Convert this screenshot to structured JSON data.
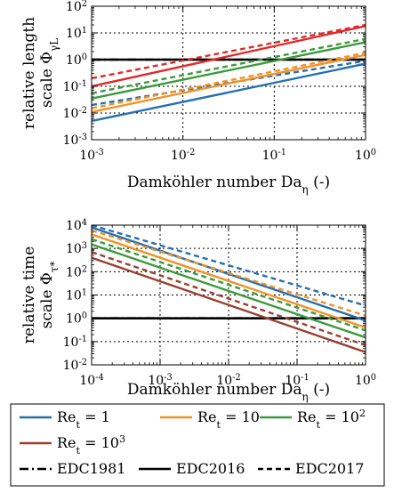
{
  "colors": {
    "re1": "#2470b0",
    "re10": "#f0922a",
    "re100": "#3c9a3c",
    "re1000": "#e02a2a",
    "re1000_panel2": "#9a4030",
    "grid": "#000000"
  },
  "legend": {
    "entries": [
      {
        "label": "Re_t = 1",
        "color_key": "re1",
        "style": "solid"
      },
      {
        "label": "Re_t = 10",
        "color_key": "re10",
        "style": "solid"
      },
      {
        "label": "Re_t = 10^2",
        "color_key": "re100",
        "style": "solid"
      },
      {
        "label": "Re_t = 10^3",
        "color_key": "re1000_panel2",
        "style": "solid"
      },
      {
        "label": "EDC1981",
        "color_key": "grid",
        "style": "dashdot"
      },
      {
        "label": "EDC2016",
        "color_key": "grid",
        "style": "solid"
      },
      {
        "label": "EDC2017",
        "color_key": "grid",
        "style": "dashed"
      }
    ]
  },
  "chart_data": [
    {
      "type": "line",
      "xlabel": "Damköhler number Da_η (-)",
      "ylabel_line1": "relative length",
      "ylabel_line2": "scale Φ_{γL}",
      "x_scale": "log",
      "y_scale": "log",
      "xlim": [
        0.001,
        1
      ],
      "ylim": [
        0.001,
        100
      ],
      "x_ticks": [
        "10^-3",
        "10^-2",
        "10^-1",
        "10^0"
      ],
      "y_ticks": [
        "10^-3",
        "10^-2",
        "10^-1",
        "10^0",
        "10^1",
        "10^2"
      ],
      "grid": true,
      "series": [
        {
          "name": "EDC1981",
          "color_key": "grid",
          "style": "dashdot",
          "x": [
            0.001,
            1
          ],
          "y": [
            1,
            1
          ]
        },
        {
          "name": "EDC2016",
          "color_key": "grid",
          "style": "solid",
          "x": [
            0.001,
            1
          ],
          "y": [
            1,
            1
          ]
        },
        {
          "name": "Re_t = 1 (EDC2016)",
          "color_key": "re1",
          "style": "solid",
          "x": [
            0.001,
            1
          ],
          "y": [
            0.005,
            0.7
          ]
        },
        {
          "name": "Re_t = 1 (EDC2017)",
          "color_key": "re1",
          "style": "dashed",
          "x": [
            0.001,
            1
          ],
          "y": [
            0.02,
            0.9
          ]
        },
        {
          "name": "Re_t = 10 (EDC2016)",
          "color_key": "re10",
          "style": "solid",
          "x": [
            0.001,
            1
          ],
          "y": [
            0.011,
            1.5
          ]
        },
        {
          "name": "Re_t = 10 (EDC2017)",
          "color_key": "re10",
          "style": "dashed",
          "x": [
            0.001,
            1
          ],
          "y": [
            0.015,
            1.8
          ]
        },
        {
          "name": "Re_t = 10^2 (EDC2016)",
          "color_key": "re100",
          "style": "solid",
          "x": [
            0.001,
            1
          ],
          "y": [
            0.035,
            4.5
          ]
        },
        {
          "name": "Re_t = 10^2 (EDC2017)",
          "color_key": "re100",
          "style": "dashed",
          "x": [
            0.001,
            1
          ],
          "y": [
            0.055,
            6
          ]
        },
        {
          "name": "Re_t = 10^3 (EDC2016)",
          "color_key": "re1000",
          "style": "solid",
          "x": [
            0.001,
            1
          ],
          "y": [
            0.1,
            18
          ]
        },
        {
          "name": "Re_t = 10^3 (EDC2017)",
          "color_key": "re1000",
          "style": "dashed",
          "x": [
            0.001,
            1
          ],
          "y": [
            0.2,
            20
          ]
        }
      ]
    },
    {
      "type": "line",
      "xlabel": "Damköhler number Da_η (-)",
      "ylabel_line1": "relative time",
      "ylabel_line2": "scale Φ_{τ*}",
      "x_scale": "log",
      "y_scale": "log",
      "xlim": [
        0.0001,
        1
      ],
      "ylim": [
        0.01,
        10000
      ],
      "x_ticks": [
        "10^-4",
        "10^-3",
        "10^-2",
        "10^-1",
        "10^0"
      ],
      "y_ticks": [
        "10^-2",
        "10^-1",
        "10^0",
        "10^1",
        "10^2",
        "10^3",
        "10^4"
      ],
      "grid": true,
      "series": [
        {
          "name": "EDC1981",
          "color_key": "grid",
          "style": "dashdot",
          "x": [
            0.0001,
            1
          ],
          "y": [
            1,
            1
          ]
        },
        {
          "name": "EDC2016",
          "color_key": "grid",
          "style": "solid",
          "x": [
            0.0001,
            1
          ],
          "y": [
            1,
            1
          ]
        },
        {
          "name": "Re_t = 1 (EDC2016)",
          "color_key": "re1",
          "style": "solid",
          "x": [
            0.0001,
            1
          ],
          "y": [
            8000,
            0.8
          ]
        },
        {
          "name": "Re_t = 1 (EDC2017)",
          "color_key": "re1",
          "style": "dashed",
          "x": [
            0.0001,
            1
          ],
          "y": [
            10000,
            3.5
          ]
        },
        {
          "name": "Re_t = 10 (EDC2016)",
          "color_key": "re10",
          "style": "solid",
          "x": [
            0.0001,
            1
          ],
          "y": [
            4000,
            0.4
          ]
        },
        {
          "name": "Re_t = 10 (EDC2017)",
          "color_key": "re10",
          "style": "dashed",
          "x": [
            0.0001,
            1
          ],
          "y": [
            6000,
            1.3
          ]
        },
        {
          "name": "Re_t = 10^2 (EDC2016)",
          "color_key": "re100",
          "style": "solid",
          "x": [
            0.0001,
            1
          ],
          "y": [
            1500,
            0.15
          ]
        },
        {
          "name": "Re_t = 10^2 (EDC2017)",
          "color_key": "re100",
          "style": "dashed",
          "x": [
            0.0001,
            1
          ],
          "y": [
            2500,
            0.3
          ]
        },
        {
          "name": "Re_t = 10^3 (EDC2016)",
          "color_key": "re1000_panel2",
          "style": "solid",
          "x": [
            0.0001,
            1
          ],
          "y": [
            400,
            0.035
          ]
        },
        {
          "name": "Re_t = 10^3 (EDC2017)",
          "color_key": "re1000_panel2",
          "style": "dashed",
          "x": [
            0.0001,
            1
          ],
          "y": [
            700,
            0.07
          ]
        }
      ]
    }
  ]
}
